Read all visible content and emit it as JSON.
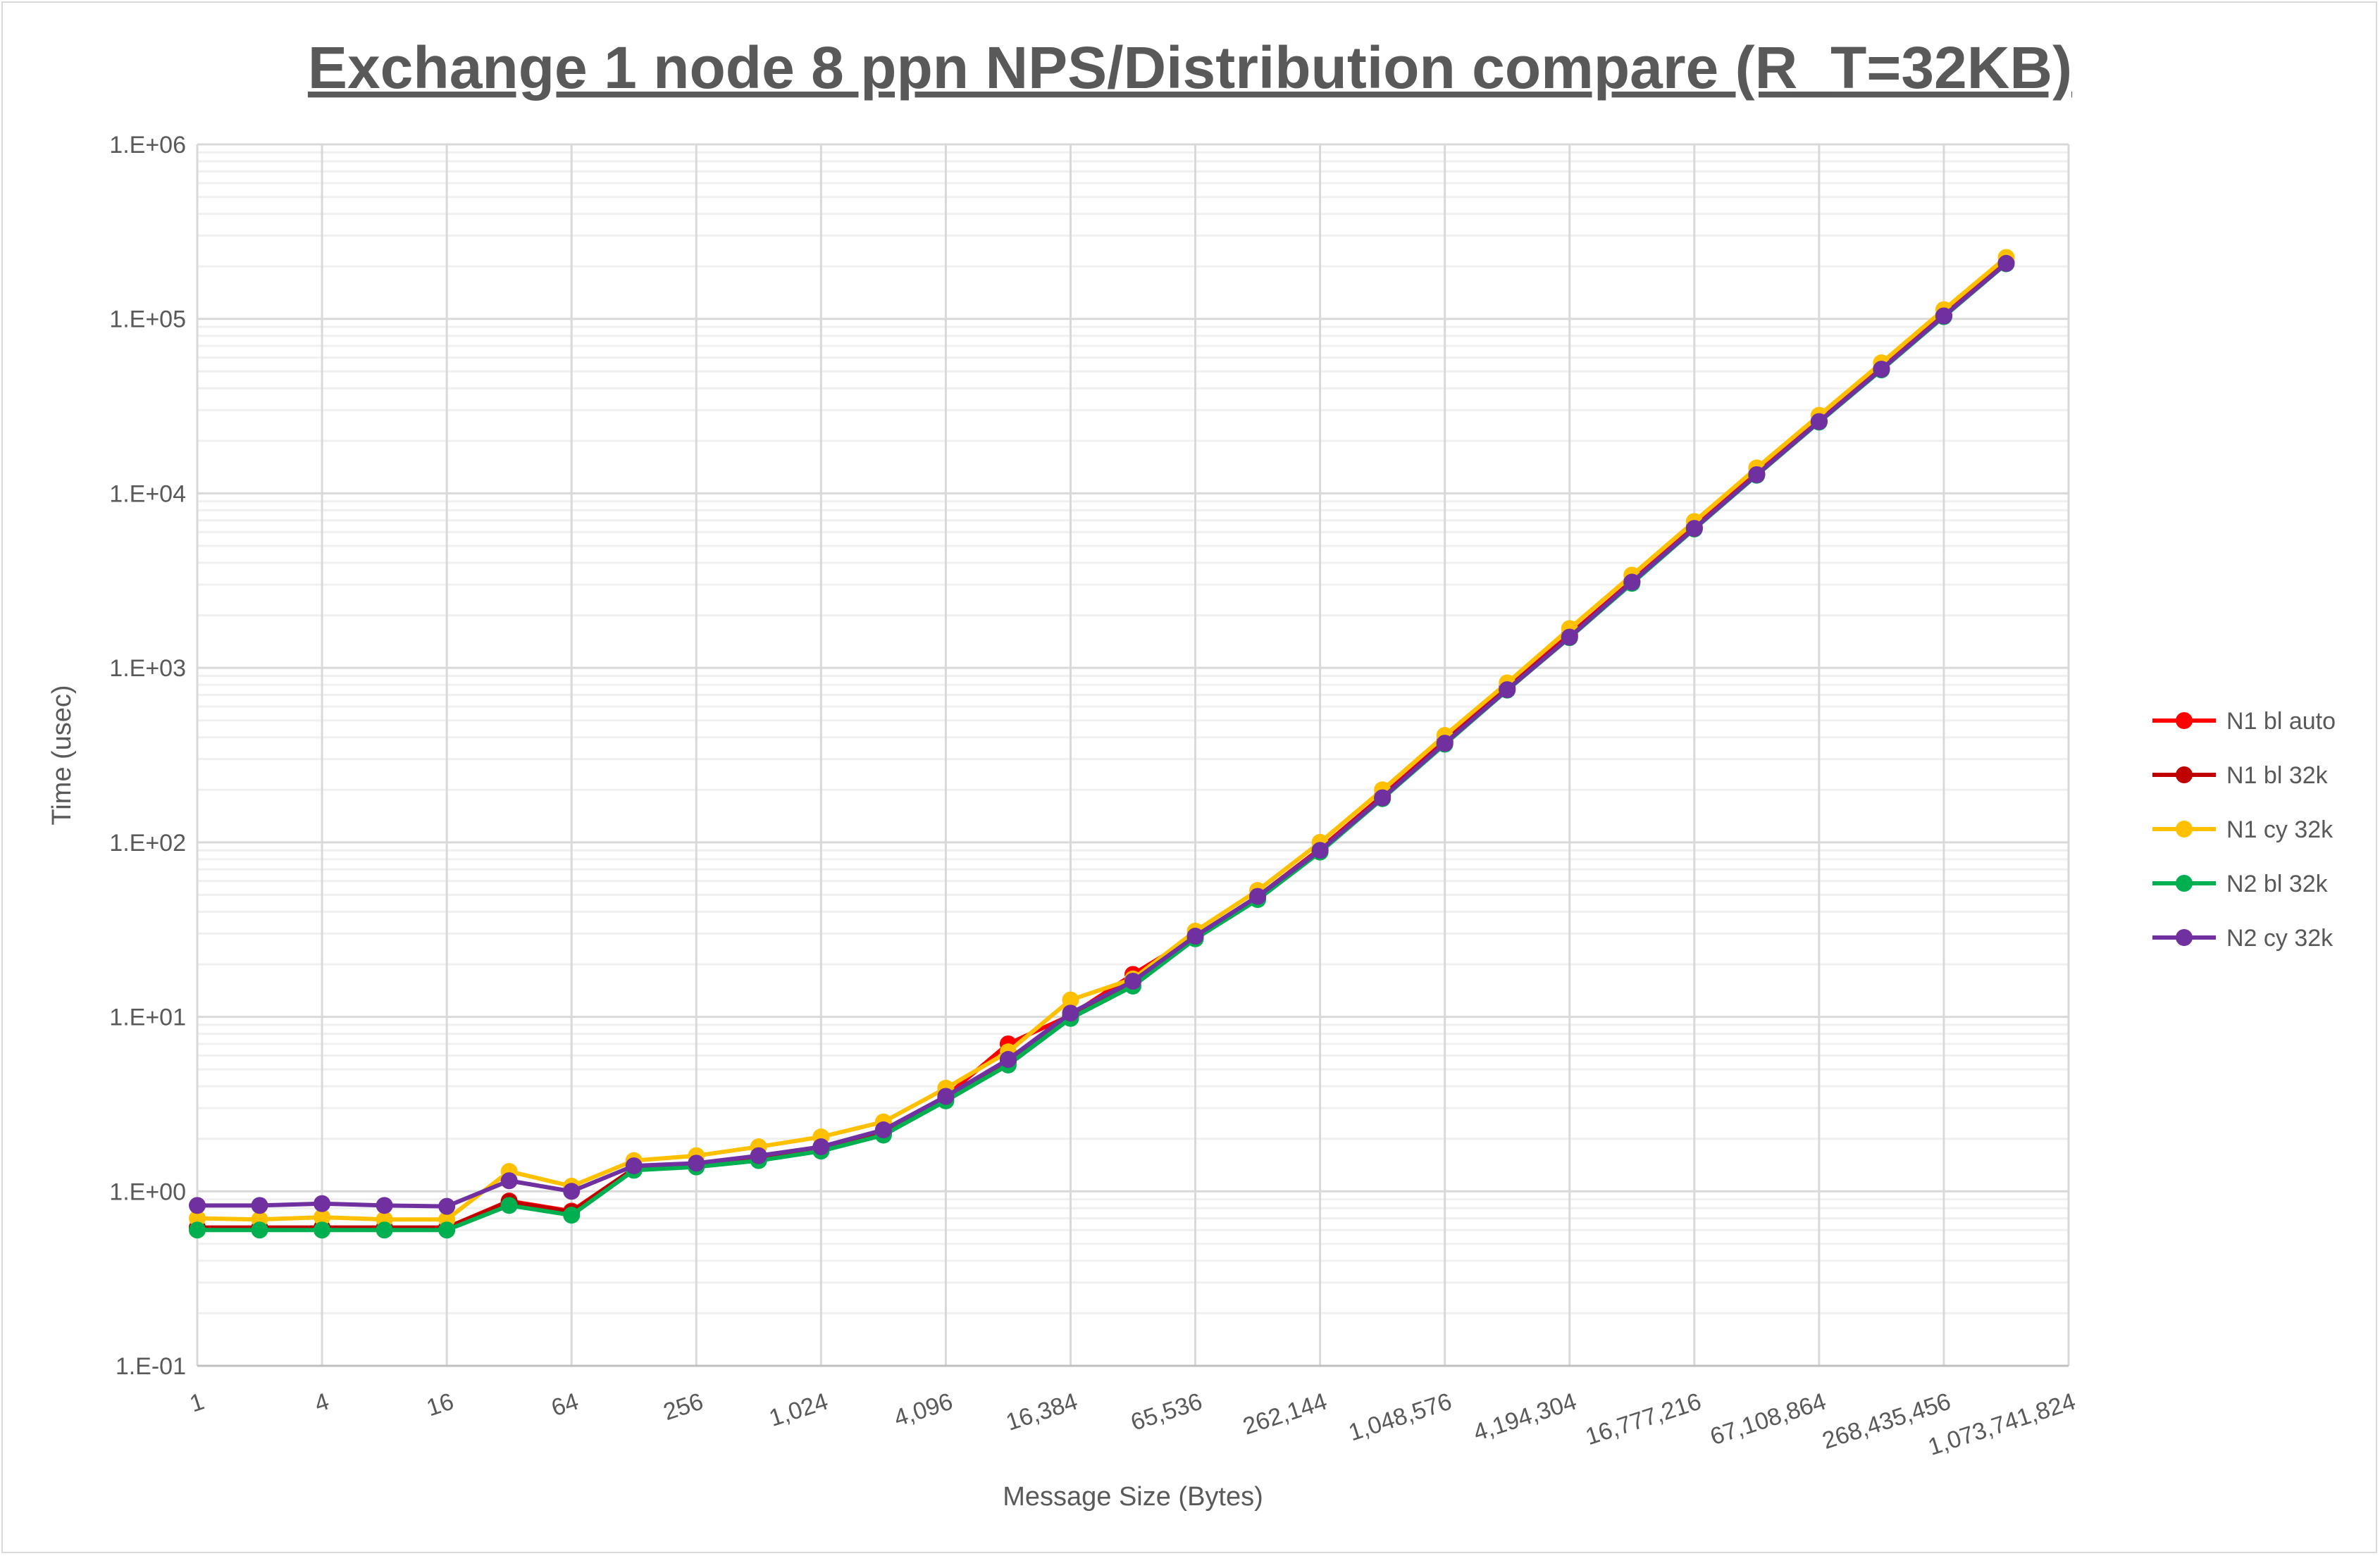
{
  "chart_data": {
    "type": "line",
    "title": "Exchange 1 node 8 ppn NPS/Distribution compare (R_T=32KB)",
    "xlabel": "Message Size (Bytes)",
    "ylabel": "Time (usec)",
    "x_scale": "log2",
    "y_scale": "log10",
    "xlim": [
      1,
      1073741824
    ],
    "ylim": [
      0.1,
      1000000
    ],
    "grid": true,
    "legend_position": "right",
    "x_tick_labels": [
      "1",
      "4",
      "16",
      "64",
      "256",
      "1,024",
      "4,096",
      "16,384",
      "65,536",
      "262,144",
      "1,048,576",
      "4,194,304",
      "16,777,216",
      "67,108,864",
      "268,435,456",
      "1,073,741,824"
    ],
    "y_tick_labels": [
      "1.E-01",
      "1.E+00",
      "1.E+01",
      "1.E+02",
      "1.E+03",
      "1.E+04",
      "1.E+05",
      "1.E+06"
    ],
    "x": [
      1,
      2,
      4,
      8,
      16,
      32,
      64,
      128,
      256,
      512,
      1024,
      2048,
      4096,
      8192,
      16384,
      32768,
      65536,
      131072,
      262144,
      524288,
      1048576,
      2097152,
      4194304,
      8388608,
      16777216,
      33554432,
      67108864,
      134217728,
      268435456,
      536870912
    ],
    "series": [
      {
        "name": "N1 bl auto",
        "color": "#ff0000",
        "values": [
          0.62,
          0.62,
          0.62,
          0.62,
          0.62,
          0.88,
          0.77,
          1.35,
          1.4,
          1.55,
          1.75,
          2.15,
          3.5,
          7.0,
          10.2,
          17.5,
          29,
          49,
          92,
          185,
          380,
          770,
          1550,
          3150,
          6400,
          13000,
          26000,
          52000,
          105000,
          210000
        ]
      },
      {
        "name": "N1 bl 32k",
        "color": "#c00000",
        "values": [
          0.62,
          0.62,
          0.62,
          0.62,
          0.62,
          0.87,
          0.76,
          1.35,
          1.4,
          1.55,
          1.75,
          2.15,
          3.4,
          5.5,
          10,
          16,
          28.5,
          48,
          90,
          182,
          375,
          760,
          1520,
          3100,
          6300,
          12800,
          25800,
          51500,
          104000,
          208000
        ]
      },
      {
        "name": "N1 cy 32k",
        "color": "#ffc000",
        "values": [
          0.7,
          0.69,
          0.71,
          0.69,
          0.69,
          1.3,
          1.07,
          1.5,
          1.6,
          1.8,
          2.05,
          2.5,
          3.9,
          6.3,
          12.5,
          16.5,
          31,
          53,
          100,
          200,
          410,
          820,
          1680,
          3400,
          6900,
          14000,
          28000,
          56000,
          113000,
          225000
        ]
      },
      {
        "name": "N2 bl 32k",
        "color": "#00b050",
        "values": [
          0.6,
          0.6,
          0.6,
          0.6,
          0.6,
          0.83,
          0.73,
          1.32,
          1.38,
          1.5,
          1.7,
          2.1,
          3.3,
          5.3,
          9.8,
          15,
          28,
          47,
          88,
          178,
          365,
          745,
          1490,
          3050,
          6250,
          12700,
          25600,
          51000,
          103000,
          207000
        ]
      },
      {
        "name": "N2 cy 32k",
        "color": "#7030a0",
        "values": [
          0.83,
          0.83,
          0.85,
          0.83,
          0.82,
          1.15,
          1.0,
          1.4,
          1.45,
          1.6,
          1.8,
          2.25,
          3.5,
          5.7,
          10.5,
          16,
          29,
          49,
          90,
          180,
          370,
          750,
          1500,
          3100,
          6300,
          12800,
          25800,
          51500,
          104000,
          208000
        ]
      }
    ]
  }
}
